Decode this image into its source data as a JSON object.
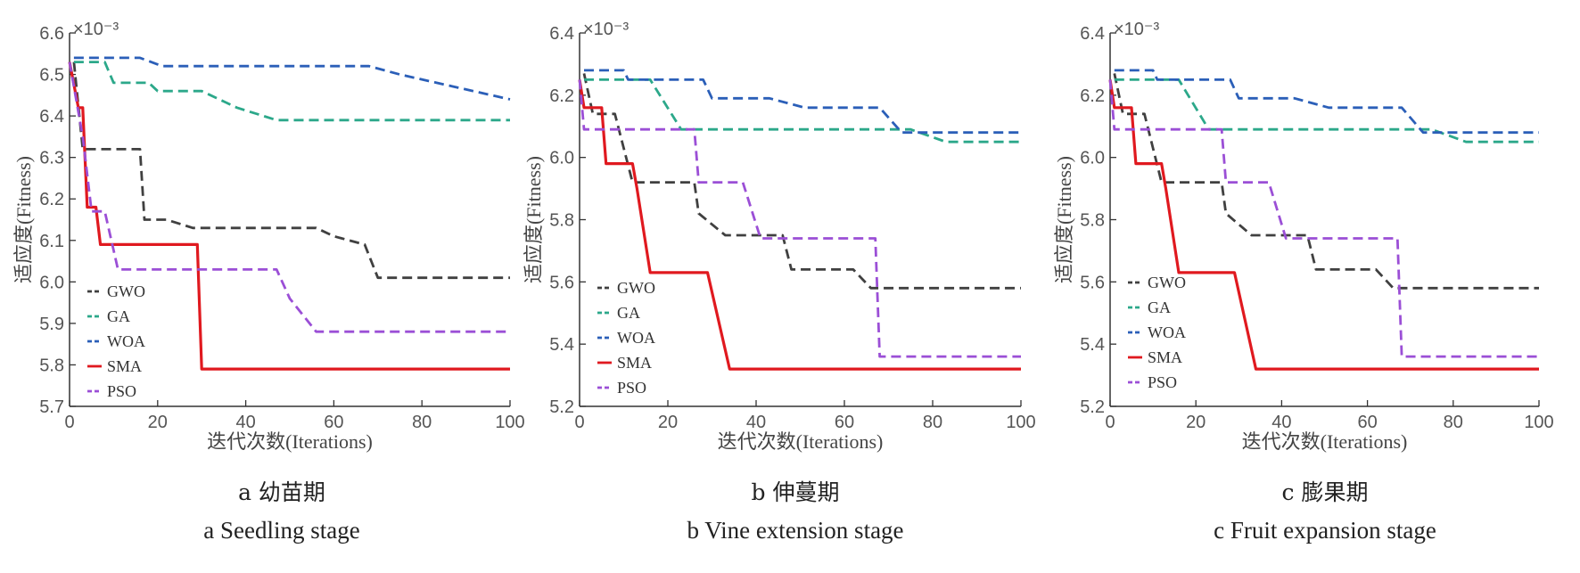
{
  "chart_data": [
    {
      "type": "line",
      "panel_letter": "a",
      "caption_cn": "a  幼苗期",
      "caption_en": "a   Seedling stage",
      "xlabel": "迭代次数(Iterations)",
      "ylabel": "适应度(Fitness)",
      "y_exponent": "×10⁻³",
      "xlim": [
        0,
        100
      ],
      "ylim": [
        5.7,
        6.6
      ],
      "xticks": [
        0,
        20,
        40,
        60,
        80,
        100
      ],
      "yticks": [
        5.7,
        5.8,
        5.9,
        6.0,
        6.1,
        6.2,
        6.3,
        6.4,
        6.5,
        6.6
      ],
      "ytick_labels": [
        "5.7",
        "5.8",
        "5.9",
        "6.0",
        "6.1",
        "6.2",
        "6.3",
        "6.4",
        "6.5",
        "6.6"
      ],
      "legend_position": "lower-left",
      "series": [
        {
          "name": "GWO",
          "color": "#404040",
          "dash": "dashed",
          "points": [
            [
              1,
              6.53
            ],
            [
              3,
              6.32
            ],
            [
              16,
              6.32
            ],
            [
              17,
              6.15
            ],
            [
              22,
              6.15
            ],
            [
              28,
              6.13
            ],
            [
              56,
              6.13
            ],
            [
              60,
              6.11
            ],
            [
              67,
              6.09
            ],
            [
              70,
              6.01
            ],
            [
              100,
              6.01
            ]
          ]
        },
        {
          "name": "GA",
          "color": "#2ca88a",
          "dash": "dashed",
          "points": [
            [
              1,
              6.53
            ],
            [
              8,
              6.53
            ],
            [
              10,
              6.48
            ],
            [
              18,
              6.48
            ],
            [
              20,
              6.46
            ],
            [
              30,
              6.46
            ],
            [
              38,
              6.42
            ],
            [
              47,
              6.39
            ],
            [
              100,
              6.39
            ]
          ]
        },
        {
          "name": "WOA",
          "color": "#2b5fb8",
          "dash": "dashed",
          "points": [
            [
              1,
              6.54
            ],
            [
              16,
              6.54
            ],
            [
              21,
              6.52
            ],
            [
              68,
              6.52
            ],
            [
              75,
              6.5
            ],
            [
              100,
              6.44
            ]
          ]
        },
        {
          "name": "SMA",
          "color": "#e0191f",
          "dash": "solid",
          "points": [
            [
              0,
              6.53
            ],
            [
              2,
              6.42
            ],
            [
              3,
              6.42
            ],
            [
              4,
              6.18
            ],
            [
              6,
              6.18
            ],
            [
              7,
              6.09
            ],
            [
              29,
              6.09
            ],
            [
              30,
              5.79
            ],
            [
              100,
              5.79
            ]
          ]
        },
        {
          "name": "PSO",
          "color": "#9b4fd6",
          "dash": "dashed",
          "points": [
            [
              0,
              6.53
            ],
            [
              3,
              6.35
            ],
            [
              5,
              6.17
            ],
            [
              8,
              6.17
            ],
            [
              11,
              6.03
            ],
            [
              47,
              6.03
            ],
            [
              50,
              5.96
            ],
            [
              56,
              5.88
            ],
            [
              100,
              5.88
            ]
          ]
        }
      ]
    },
    {
      "type": "line",
      "panel_letter": "b",
      "caption_cn": "b  伸蔓期",
      "caption_en": "b   Vine extension stage",
      "xlabel": "迭代次数(Iterations)",
      "ylabel": "适应度(Fitness)",
      "y_exponent": "×10⁻³",
      "xlim": [
        0,
        100
      ],
      "ylim": [
        5.2,
        6.4
      ],
      "xticks": [
        0,
        20,
        40,
        60,
        80,
        100
      ],
      "yticks": [
        5.2,
        5.4,
        5.6,
        5.8,
        6.0,
        6.2,
        6.4
      ],
      "ytick_labels": [
        "5.2",
        "5.4",
        "5.6",
        "5.8",
        "6.0",
        "6.2",
        "6.4"
      ],
      "legend_position": "lower-left",
      "series": [
        {
          "name": "GWO",
          "color": "#404040",
          "dash": "dashed",
          "points": [
            [
              1,
              6.27
            ],
            [
              3,
              6.14
            ],
            [
              8,
              6.14
            ],
            [
              12,
              5.92
            ],
            [
              26,
              5.92
            ],
            [
              27,
              5.82
            ],
            [
              33,
              5.75
            ],
            [
              46,
              5.75
            ],
            [
              48,
              5.64
            ],
            [
              62,
              5.64
            ],
            [
              66,
              5.58
            ],
            [
              100,
              5.58
            ]
          ]
        },
        {
          "name": "GA",
          "color": "#2ca88a",
          "dash": "dashed",
          "points": [
            [
              1,
              6.25
            ],
            [
              16,
              6.25
            ],
            [
              23,
              6.09
            ],
            [
              75,
              6.09
            ],
            [
              83,
              6.05
            ],
            [
              100,
              6.05
            ]
          ]
        },
        {
          "name": "WOA",
          "color": "#2b5fb8",
          "dash": "dashed",
          "points": [
            [
              1,
              6.28
            ],
            [
              10,
              6.28
            ],
            [
              11,
              6.25
            ],
            [
              28,
              6.25
            ],
            [
              30,
              6.19
            ],
            [
              43,
              6.19
            ],
            [
              51,
              6.16
            ],
            [
              68,
              6.16
            ],
            [
              73,
              6.08
            ],
            [
              100,
              6.08
            ]
          ]
        },
        {
          "name": "SMA",
          "color": "#e0191f",
          "dash": "solid",
          "points": [
            [
              0,
              6.25
            ],
            [
              1,
              6.16
            ],
            [
              5,
              6.16
            ],
            [
              6,
              5.98
            ],
            [
              12,
              5.98
            ],
            [
              13,
              5.9
            ],
            [
              16,
              5.63
            ],
            [
              29,
              5.63
            ],
            [
              34,
              5.32
            ],
            [
              100,
              5.32
            ]
          ]
        },
        {
          "name": "PSO",
          "color": "#9b4fd6",
          "dash": "dashed",
          "points": [
            [
              0,
              6.25
            ],
            [
              1,
              6.09
            ],
            [
              26,
              6.09
            ],
            [
              27,
              5.92
            ],
            [
              37,
              5.92
            ],
            [
              41,
              5.74
            ],
            [
              67,
              5.74
            ],
            [
              68,
              5.36
            ],
            [
              100,
              5.36
            ]
          ]
        }
      ]
    },
    {
      "type": "line",
      "panel_letter": "c",
      "caption_cn": "c  膨果期",
      "caption_en": "c   Fruit expansion stage",
      "xlabel": "迭代次数(Iterations)",
      "ylabel": "适应度(Fitness)",
      "y_exponent": "×10⁻³",
      "xlim": [
        0,
        100
      ],
      "ylim": [
        5.2,
        6.4
      ],
      "xticks": [
        0,
        20,
        40,
        60,
        80,
        100
      ],
      "yticks": [
        5.2,
        5.4,
        5.6,
        5.8,
        6.0,
        6.2,
        6.4
      ],
      "ytick_labels": [
        "5.2",
        "5.4",
        "5.6",
        "5.8",
        "6.0",
        "6.2",
        "6.4"
      ],
      "legend_position": "lower-left",
      "series": [
        {
          "name": "GWO",
          "color": "#404040",
          "dash": "dashed",
          "points": [
            [
              1,
              6.27
            ],
            [
              3,
              6.14
            ],
            [
              8,
              6.14
            ],
            [
              12,
              5.92
            ],
            [
              26,
              5.92
            ],
            [
              27,
              5.82
            ],
            [
              33,
              5.75
            ],
            [
              46,
              5.75
            ],
            [
              48,
              5.64
            ],
            [
              62,
              5.64
            ],
            [
              66,
              5.58
            ],
            [
              100,
              5.58
            ]
          ]
        },
        {
          "name": "GA",
          "color": "#2ca88a",
          "dash": "dashed",
          "points": [
            [
              1,
              6.25
            ],
            [
              16,
              6.25
            ],
            [
              23,
              6.09
            ],
            [
              75,
              6.09
            ],
            [
              83,
              6.05
            ],
            [
              100,
              6.05
            ]
          ]
        },
        {
          "name": "WOA",
          "color": "#2b5fb8",
          "dash": "dashed",
          "points": [
            [
              1,
              6.28
            ],
            [
              10,
              6.28
            ],
            [
              11,
              6.25
            ],
            [
              28,
              6.25
            ],
            [
              30,
              6.19
            ],
            [
              43,
              6.19
            ],
            [
              51,
              6.16
            ],
            [
              68,
              6.16
            ],
            [
              73,
              6.08
            ],
            [
              100,
              6.08
            ]
          ]
        },
        {
          "name": "SMA",
          "color": "#e0191f",
          "dash": "solid",
          "points": [
            [
              0,
              6.25
            ],
            [
              1,
              6.16
            ],
            [
              5,
              6.16
            ],
            [
              6,
              5.98
            ],
            [
              12,
              5.98
            ],
            [
              13,
              5.9
            ],
            [
              16,
              5.63
            ],
            [
              29,
              5.63
            ],
            [
              34,
              5.32
            ],
            [
              100,
              5.32
            ]
          ]
        },
        {
          "name": "PSO",
          "color": "#9b4fd6",
          "dash": "dashed",
          "points": [
            [
              0,
              6.25
            ],
            [
              1,
              6.09
            ],
            [
              26,
              6.09
            ],
            [
              27,
              5.92
            ],
            [
              37,
              5.92
            ],
            [
              41,
              5.74
            ],
            [
              67,
              5.74
            ],
            [
              68,
              5.36
            ],
            [
              100,
              5.36
            ]
          ]
        }
      ]
    }
  ]
}
